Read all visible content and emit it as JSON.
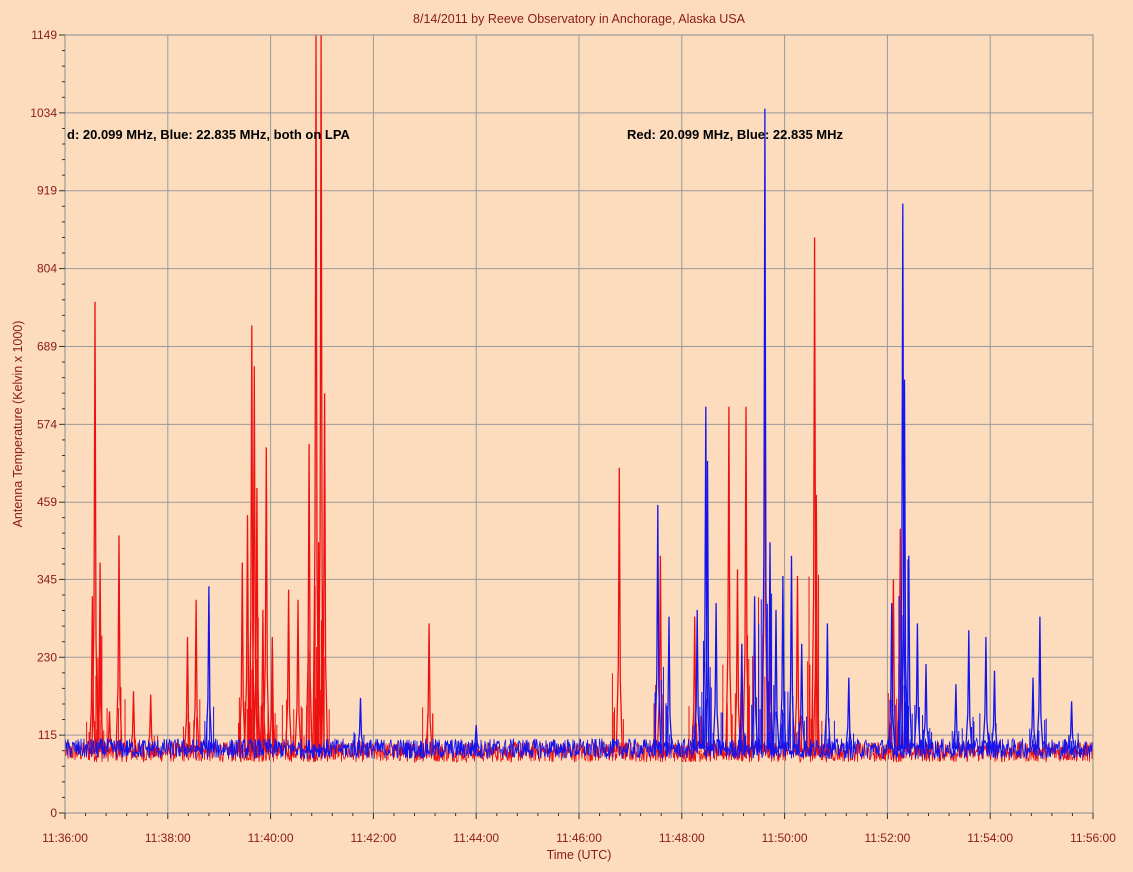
{
  "chart_data": {
    "type": "line",
    "title": "8/14/2011  by  Reeve Observatory  in  Anchorage, Alaska  USA",
    "xlabel": "Time (UTC)",
    "ylabel": "Antenna Temperature (Kelvin x 1000)",
    "xlim": [
      "11:36:00",
      "11:56:00"
    ],
    "ylim": [
      0,
      1149
    ],
    "x_ticks": [
      "11:36:00",
      "11:38:00",
      "11:40:00",
      "11:42:00",
      "11:44:00",
      "11:46:00",
      "11:48:00",
      "11:50:00",
      "11:52:00",
      "11:54:00",
      "11:56:00"
    ],
    "y_ticks": [
      "0",
      "115",
      "230",
      "345",
      "459",
      "574",
      "689",
      "804",
      "919",
      "1034",
      "1149"
    ],
    "grid": true,
    "colors": {
      "background": "#fcdcbc",
      "grid": "#9a9a9a",
      "frame": "#8c8c8c",
      "text": "#8b1a1a",
      "red": "#ee1111",
      "blue": "#1414ee"
    },
    "annotations": [
      "d: 20.099 MHz, Blue: 22.835 MHz, both on LPA",
      "Red: 20.099 MHz, Blue: 22.835 MHz"
    ],
    "series": [
      {
        "color": "red",
        "frequency_mhz": 20.099,
        "baseline": 90,
        "spikes": [
          {
            "t": "11:36:35",
            "v": 755
          },
          {
            "t": "11:36:32",
            "v": 320
          },
          {
            "t": "11:36:41",
            "v": 370
          },
          {
            "t": "11:36:52",
            "v": 150
          },
          {
            "t": "11:37:03",
            "v": 410
          },
          {
            "t": "11:37:20",
            "v": 180
          },
          {
            "t": "11:37:40",
            "v": 175
          },
          {
            "t": "11:38:23",
            "v": 260
          },
          {
            "t": "11:38:33",
            "v": 315
          },
          {
            "t": "11:39:27",
            "v": 370
          },
          {
            "t": "11:39:33",
            "v": 440
          },
          {
            "t": "11:39:38",
            "v": 720
          },
          {
            "t": "11:39:41",
            "v": 660
          },
          {
            "t": "11:39:44",
            "v": 480
          },
          {
            "t": "11:39:51",
            "v": 300
          },
          {
            "t": "11:39:55",
            "v": 540
          },
          {
            "t": "11:40:02",
            "v": 260
          },
          {
            "t": "11:40:21",
            "v": 330
          },
          {
            "t": "11:40:32",
            "v": 315
          },
          {
            "t": "11:40:45",
            "v": 545
          },
          {
            "t": "11:40:53",
            "v": 1149
          },
          {
            "t": "11:40:56",
            "v": 400
          },
          {
            "t": "11:40:59",
            "v": 1149
          },
          {
            "t": "11:41:03",
            "v": 620
          },
          {
            "t": "11:43:05",
            "v": 280
          },
          {
            "t": "11:46:47",
            "v": 510
          },
          {
            "t": "11:47:35",
            "v": 380
          },
          {
            "t": "11:48:15",
            "v": 290
          },
          {
            "t": "11:48:55",
            "v": 600
          },
          {
            "t": "11:49:05",
            "v": 360
          },
          {
            "t": "11:49:15",
            "v": 600
          },
          {
            "t": "11:49:37",
            "v": 780
          },
          {
            "t": "11:50:15",
            "v": 350
          },
          {
            "t": "11:50:35",
            "v": 850
          },
          {
            "t": "11:50:37",
            "v": 470
          },
          {
            "t": "11:52:07",
            "v": 345
          },
          {
            "t": "11:52:15",
            "v": 420
          }
        ]
      },
      {
        "color": "blue",
        "frequency_mhz": 22.835,
        "baseline": 95,
        "spikes": [
          {
            "t": "11:38:48",
            "v": 335
          },
          {
            "t": "11:41:45",
            "v": 170
          },
          {
            "t": "11:44:00",
            "v": 130
          },
          {
            "t": "11:47:32",
            "v": 455
          },
          {
            "t": "11:47:45",
            "v": 290
          },
          {
            "t": "11:48:18",
            "v": 300
          },
          {
            "t": "11:48:28",
            "v": 600
          },
          {
            "t": "11:48:30",
            "v": 520
          },
          {
            "t": "11:48:40",
            "v": 310
          },
          {
            "t": "11:49:10",
            "v": 250
          },
          {
            "t": "11:49:25",
            "v": 320
          },
          {
            "t": "11:49:37",
            "v": 1040
          },
          {
            "t": "11:49:43",
            "v": 400
          },
          {
            "t": "11:49:50",
            "v": 300
          },
          {
            "t": "11:49:58",
            "v": 350
          },
          {
            "t": "11:50:08",
            "v": 380
          },
          {
            "t": "11:50:20",
            "v": 250
          },
          {
            "t": "11:50:50",
            "v": 280
          },
          {
            "t": "11:51:15",
            "v": 200
          },
          {
            "t": "11:52:05",
            "v": 310
          },
          {
            "t": "11:52:18",
            "v": 900
          },
          {
            "t": "11:52:20",
            "v": 640
          },
          {
            "t": "11:52:25",
            "v": 380
          },
          {
            "t": "11:52:35",
            "v": 280
          },
          {
            "t": "11:52:45",
            "v": 220
          },
          {
            "t": "11:53:20",
            "v": 190
          },
          {
            "t": "11:53:35",
            "v": 270
          },
          {
            "t": "11:53:55",
            "v": 260
          },
          {
            "t": "11:54:05",
            "v": 210
          },
          {
            "t": "11:54:50",
            "v": 200
          },
          {
            "t": "11:54:58",
            "v": 290
          },
          {
            "t": "11:55:35",
            "v": 165
          }
        ]
      }
    ]
  }
}
